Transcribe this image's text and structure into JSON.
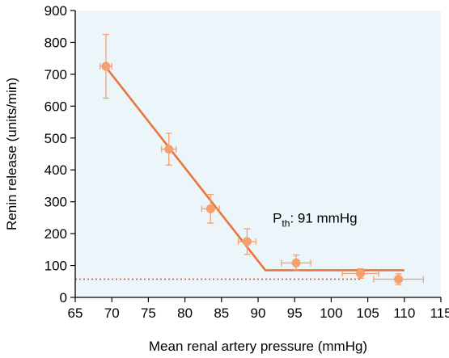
{
  "chart_data": {
    "type": "scatter",
    "title": "",
    "xlabel": "Mean renal artery pressure (mmHg)",
    "ylabel": "Renin release (units/min)",
    "xlim": [
      65,
      115
    ],
    "ylim": [
      0,
      900
    ],
    "x_ticks": [
      65,
      70,
      75,
      80,
      85,
      90,
      95,
      100,
      105,
      110,
      115
    ],
    "y_ticks": [
      0,
      100,
      200,
      300,
      400,
      500,
      600,
      700,
      800,
      900
    ],
    "grid": false,
    "colors": {
      "marker": "#f4a06f",
      "fit_line": "#e8773e",
      "threshold_line": "#c9693c",
      "plot_background": "#ebf5fa",
      "axis": "#000000"
    },
    "points": [
      {
        "x": 69.2,
        "y": 725,
        "x_err": 0.8,
        "y_err": 100
      },
      {
        "x": 77.8,
        "y": 465,
        "x_err": 1.0,
        "y_err": 50
      },
      {
        "x": 83.5,
        "y": 278,
        "x_err": 1.2,
        "y_err": 45
      },
      {
        "x": 88.5,
        "y": 175,
        "x_err": 1.2,
        "y_err": 40
      },
      {
        "x": 95.2,
        "y": 108,
        "x_err": 2.0,
        "y_err": 25
      },
      {
        "x": 104.0,
        "y": 75,
        "x_err": 2.5,
        "y_err": 15
      },
      {
        "x": 109.2,
        "y": 57,
        "x_err": 3.4,
        "y_err": 17
      }
    ],
    "fit_line": [
      {
        "x": 69.2,
        "y": 722
      },
      {
        "x": 91,
        "y": 85
      },
      {
        "x": 110,
        "y": 85
      }
    ],
    "threshold_line": {
      "x_from": 65,
      "x_to": 104,
      "y": 57
    },
    "annotation": {
      "main": "P",
      "subscript": "th",
      "rest": ": 91 mmHg",
      "x": 92,
      "y": 235
    }
  }
}
